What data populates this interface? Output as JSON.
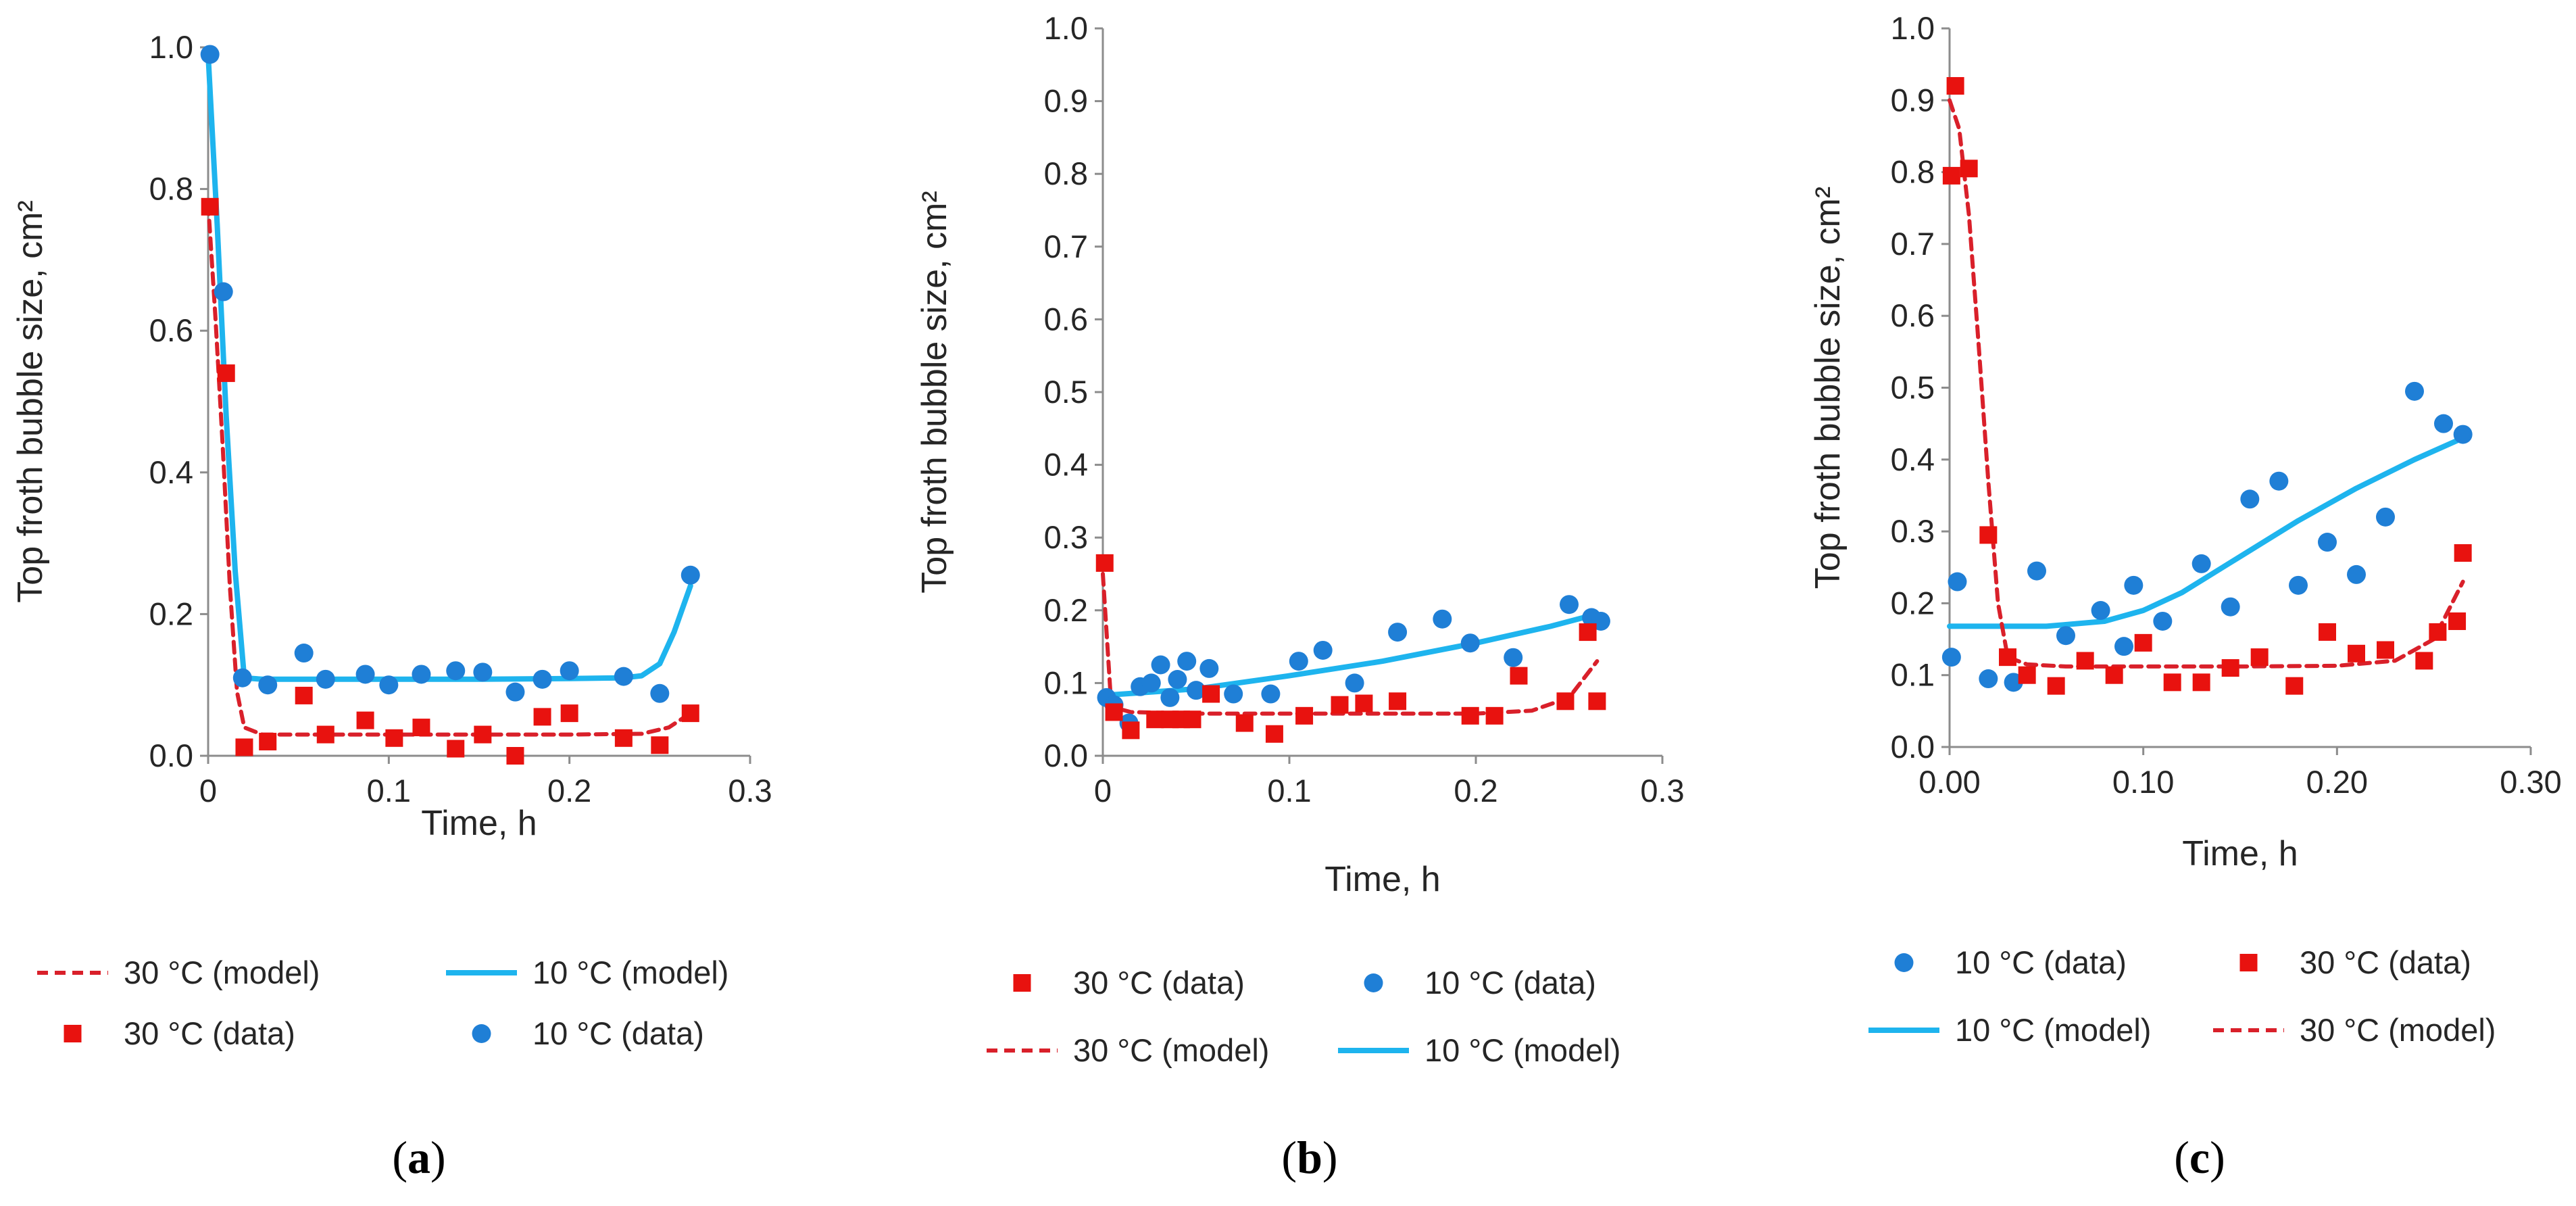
{
  "colors": {
    "blue_series": "#1f7fd6",
    "cyan_model": "#1eb4ee",
    "red_series": "#e8120f",
    "red_model": "#d9202a",
    "axis": "#8c8c8c",
    "text": "#262626"
  },
  "chart_data": [
    {
      "type": "scatter",
      "panel_label": {
        "open": "(",
        "letter": "a",
        "close": ")"
      },
      "title": "",
      "xlabel": "Time, h",
      "ylabel": "Top froth bubble size, cm²",
      "xlim": [
        0,
        0.3
      ],
      "ylim": [
        0,
        1.0
      ],
      "xticks": [
        0,
        0.1,
        0.2,
        0.3
      ],
      "xtick_labels": [
        "0",
        "0.1",
        "0.2",
        "0.3"
      ],
      "yticks": [
        0,
        0.2,
        0.4,
        0.6,
        0.8,
        1.0
      ],
      "ytick_labels": [
        "0.0",
        "0.2",
        "0.4",
        "0.6",
        "0.8",
        "1.0"
      ],
      "grid": false,
      "legend": [
        {
          "key": "red_model",
          "label": "30 °C (model)"
        },
        {
          "key": "blue_model",
          "label": "10 °C (model)"
        },
        {
          "key": "red_data",
          "label": "30 °C (data)"
        },
        {
          "key": "blue_data",
          "label": "10 °C (data)"
        }
      ],
      "series": [
        {
          "key": "blue_model",
          "name": "10 °C (model)",
          "kind": "line",
          "style": "solid",
          "x": [
            0,
            0.005,
            0.01,
            0.015,
            0.02,
            0.03,
            0.05,
            0.1,
            0.15,
            0.2,
            0.23,
            0.24,
            0.25,
            0.258,
            0.267
          ],
          "y": [
            0.99,
            0.75,
            0.48,
            0.26,
            0.11,
            0.108,
            0.108,
            0.108,
            0.108,
            0.109,
            0.11,
            0.113,
            0.13,
            0.175,
            0.24
          ]
        },
        {
          "key": "red_model",
          "name": "30 °C (model)",
          "kind": "line",
          "style": "dashed",
          "x": [
            0,
            0.004,
            0.008,
            0.012,
            0.016,
            0.02,
            0.03,
            0.05,
            0.1,
            0.15,
            0.2,
            0.24,
            0.255,
            0.267
          ],
          "y": [
            0.78,
            0.62,
            0.44,
            0.24,
            0.09,
            0.04,
            0.03,
            0.03,
            0.03,
            0.03,
            0.03,
            0.031,
            0.04,
            0.06
          ]
        },
        {
          "key": "blue_data",
          "name": "10 °C (data)",
          "kind": "scatter",
          "marker": "circle",
          "x": [
            0.001,
            0.0085,
            0.019,
            0.033,
            0.053,
            0.065,
            0.087,
            0.1,
            0.118,
            0.137,
            0.152,
            0.17,
            0.185,
            0.2,
            0.23,
            0.25,
            0.267
          ],
          "y": [
            0.99,
            0.655,
            0.11,
            0.1,
            0.145,
            0.108,
            0.115,
            0.1,
            0.115,
            0.12,
            0.118,
            0.09,
            0.108,
            0.12,
            0.112,
            0.088,
            0.255
          ]
        },
        {
          "key": "red_data",
          "name": "30 °C (data)",
          "kind": "scatter",
          "marker": "square",
          "x": [
            0.001,
            0.01,
            0.02,
            0.033,
            0.053,
            0.065,
            0.087,
            0.103,
            0.118,
            0.137,
            0.152,
            0.17,
            0.185,
            0.2,
            0.23,
            0.25,
            0.267
          ],
          "y": [
            0.775,
            0.54,
            0.012,
            0.02,
            0.085,
            0.03,
            0.05,
            0.025,
            0.04,
            0.01,
            0.03,
            0.0,
            0.055,
            0.06,
            0.025,
            0.015,
            0.06
          ]
        }
      ]
    },
    {
      "type": "scatter",
      "panel_label": {
        "open": "(",
        "letter": "b",
        "close": ")"
      },
      "title": "",
      "xlabel": "Time, h",
      "ylabel": "Top froth bubble size, cm²",
      "xlim": [
        0,
        0.3
      ],
      "ylim": [
        0,
        1.0
      ],
      "xticks": [
        0,
        0.1,
        0.2,
        0.3
      ],
      "xtick_labels": [
        "0",
        "0.1",
        "0.2",
        "0.3"
      ],
      "yticks": [
        0,
        0.1,
        0.2,
        0.3,
        0.4,
        0.5,
        0.6,
        0.7,
        0.8,
        0.9,
        1.0
      ],
      "ytick_labels": [
        "0.0",
        "0.1",
        "0.2",
        "0.3",
        "0.4",
        "0.5",
        "0.6",
        "0.7",
        "0.8",
        "0.9",
        "1.0"
      ],
      "grid": false,
      "legend": [
        {
          "key": "red_data",
          "label": "30 °C (data)"
        },
        {
          "key": "blue_data",
          "label": "10 °C (data)"
        },
        {
          "key": "red_model",
          "label": "30 °C (model)"
        },
        {
          "key": "blue_model",
          "label": "10 °C (model)"
        }
      ],
      "series": [
        {
          "key": "blue_model",
          "name": "10 °C (model)",
          "kind": "line",
          "style": "solid",
          "x": [
            0,
            0.05,
            0.1,
            0.15,
            0.2,
            0.24,
            0.265
          ],
          "y": [
            0.083,
            0.092,
            0.11,
            0.13,
            0.155,
            0.178,
            0.195
          ]
        },
        {
          "key": "red_model",
          "name": "30 °C (model)",
          "kind": "line",
          "style": "dashed",
          "x": [
            0,
            0.004,
            0.008,
            0.015,
            0.05,
            0.1,
            0.15,
            0.2,
            0.23,
            0.25,
            0.265
          ],
          "y": [
            0.25,
            0.09,
            0.065,
            0.06,
            0.058,
            0.058,
            0.058,
            0.058,
            0.062,
            0.08,
            0.13
          ]
        },
        {
          "key": "blue_data",
          "name": "10 °C (data)",
          "kind": "scatter",
          "marker": "circle",
          "x": [
            0.002,
            0.006,
            0.014,
            0.02,
            0.026,
            0.031,
            0.036,
            0.04,
            0.045,
            0.05,
            0.057,
            0.07,
            0.09,
            0.105,
            0.118,
            0.135,
            0.158,
            0.182,
            0.197,
            0.22,
            0.25,
            0.262,
            0.267
          ],
          "y": [
            0.08,
            0.07,
            0.045,
            0.095,
            0.1,
            0.125,
            0.08,
            0.105,
            0.13,
            0.09,
            0.12,
            0.085,
            0.085,
            0.13,
            0.145,
            0.1,
            0.17,
            0.188,
            0.155,
            0.135,
            0.208,
            0.19,
            0.185
          ]
        },
        {
          "key": "red_data",
          "name": "30 °C (data)",
          "kind": "scatter",
          "marker": "square",
          "x": [
            0.001,
            0.006,
            0.015,
            0.028,
            0.036,
            0.042,
            0.048,
            0.058,
            0.076,
            0.092,
            0.108,
            0.127,
            0.14,
            0.158,
            0.197,
            0.21,
            0.223,
            0.248,
            0.26,
            0.265
          ],
          "y": [
            0.265,
            0.06,
            0.035,
            0.05,
            0.05,
            0.05,
            0.05,
            0.085,
            0.045,
            0.03,
            0.055,
            0.07,
            0.072,
            0.075,
            0.055,
            0.055,
            0.11,
            0.075,
            0.17,
            0.075
          ]
        }
      ]
    },
    {
      "type": "scatter",
      "panel_label": {
        "open": "(",
        "letter": "c",
        "close": ")"
      },
      "title": "",
      "xlabel": "Time, h",
      "ylabel": "Top froth bubble size, cm²",
      "xlim": [
        0,
        0.3
      ],
      "ylim": [
        0,
        1.0
      ],
      "xticks": [
        0,
        0.1,
        0.2,
        0.3
      ],
      "xtick_labels": [
        "0.00",
        "0.10",
        "0.20",
        "0.30"
      ],
      "yticks": [
        0,
        0.1,
        0.2,
        0.3,
        0.4,
        0.5,
        0.6,
        0.7,
        0.8,
        0.9,
        1.0
      ],
      "ytick_labels": [
        "0.0",
        "0.1",
        "0.2",
        "0.3",
        "0.4",
        "0.5",
        "0.6",
        "0.7",
        "0.8",
        "0.9",
        "1.0"
      ],
      "grid": false,
      "legend": [
        {
          "key": "blue_data",
          "label": "10 °C (data)"
        },
        {
          "key": "red_data",
          "label": "30 °C (data)"
        },
        {
          "key": "blue_model",
          "label": "10 °C (model)"
        },
        {
          "key": "red_model",
          "label": "30 °C (model)"
        }
      ],
      "series": [
        {
          "key": "blue_model",
          "name": "10 °C (model)",
          "kind": "line",
          "style": "solid",
          "x": [
            0,
            0.05,
            0.08,
            0.1,
            0.12,
            0.15,
            0.18,
            0.21,
            0.24,
            0.265
          ],
          "y": [
            0.168,
            0.168,
            0.175,
            0.19,
            0.215,
            0.265,
            0.315,
            0.36,
            0.4,
            0.43
          ]
        },
        {
          "key": "red_model",
          "name": "30 °C (model)",
          "kind": "line",
          "style": "dashed",
          "x": [
            0,
            0.005,
            0.01,
            0.015,
            0.02,
            0.025,
            0.03,
            0.04,
            0.06,
            0.1,
            0.15,
            0.2,
            0.23,
            0.25,
            0.265
          ],
          "y": [
            0.9,
            0.86,
            0.74,
            0.56,
            0.37,
            0.2,
            0.125,
            0.115,
            0.112,
            0.112,
            0.112,
            0.113,
            0.12,
            0.15,
            0.23
          ]
        },
        {
          "key": "blue_data",
          "name": "10 °C (data)",
          "kind": "scatter",
          "marker": "circle",
          "x": [
            0.001,
            0.004,
            0.02,
            0.033,
            0.045,
            0.06,
            0.078,
            0.09,
            0.095,
            0.11,
            0.13,
            0.145,
            0.155,
            0.17,
            0.18,
            0.195,
            0.21,
            0.225,
            0.24,
            0.255,
            0.265
          ],
          "y": [
            0.125,
            0.23,
            0.095,
            0.09,
            0.245,
            0.155,
            0.19,
            0.14,
            0.225,
            0.175,
            0.255,
            0.195,
            0.345,
            0.37,
            0.225,
            0.285,
            0.24,
            0.32,
            0.495,
            0.45,
            0.435
          ]
        },
        {
          "key": "red_data",
          "name": "30 °C (data)",
          "kind": "scatter",
          "marker": "square",
          "x": [
            0.001,
            0.003,
            0.01,
            0.02,
            0.03,
            0.04,
            0.055,
            0.07,
            0.085,
            0.1,
            0.115,
            0.13,
            0.145,
            0.16,
            0.178,
            0.195,
            0.21,
            0.225,
            0.245,
            0.252,
            0.262,
            0.265
          ],
          "y": [
            0.795,
            0.92,
            0.805,
            0.295,
            0.125,
            0.1,
            0.085,
            0.12,
            0.1,
            0.145,
            0.09,
            0.09,
            0.11,
            0.125,
            0.085,
            0.16,
            0.13,
            0.135,
            0.12,
            0.16,
            0.175,
            0.27
          ]
        }
      ]
    }
  ]
}
